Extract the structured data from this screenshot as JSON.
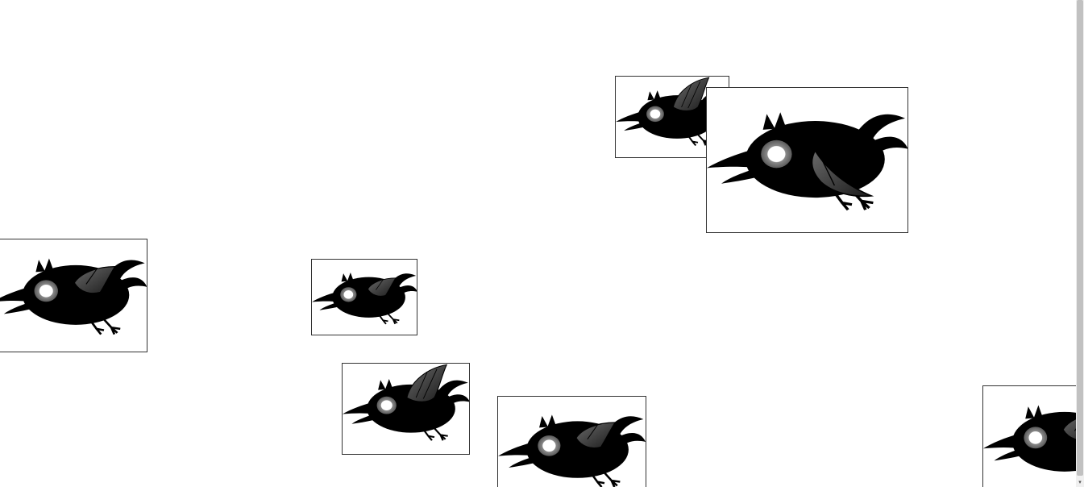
{
  "scene": {
    "background": "#ffffff",
    "sprite_icon": "crow-bird-icon",
    "colors": {
      "body": "#000000",
      "wing": "#3a3a3a",
      "eye_ring": "#777777",
      "eye": "#ffffff",
      "border": "#333333"
    }
  },
  "scrollbar": {
    "down_arrow": "▾"
  }
}
